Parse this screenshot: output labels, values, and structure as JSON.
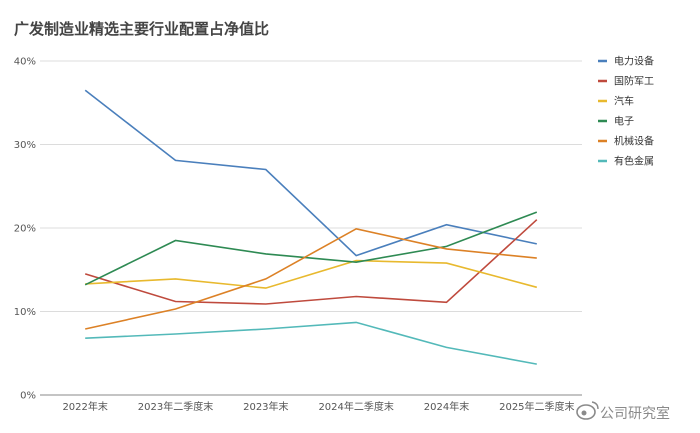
{
  "chart_data": {
    "type": "line",
    "title": "广发制造业精选主要行业配置占净值比",
    "categories": [
      "2022年末",
      "2023年二季度末",
      "2023年末",
      "2024年二季度末",
      "2024年末",
      "2025年二季度末"
    ],
    "y_ticks": [
      "0%",
      "10%",
      "20%",
      "30%",
      "40%"
    ],
    "ylim": [
      0,
      40
    ],
    "grid": true,
    "legend_position": "right",
    "series": [
      {
        "name": "电力设备",
        "color": "#4a7fbc",
        "values": [
          36.5,
          28.1,
          27.0,
          16.7,
          20.4,
          18.1
        ]
      },
      {
        "name": "国防军工",
        "color": "#bf4a3d",
        "values": [
          14.5,
          11.2,
          10.9,
          11.8,
          11.1,
          21.0
        ]
      },
      {
        "name": "汽车",
        "color": "#e8b92e",
        "values": [
          13.3,
          13.9,
          12.8,
          16.1,
          15.8,
          12.9
        ]
      },
      {
        "name": "电子",
        "color": "#2e8a53",
        "values": [
          13.2,
          18.5,
          16.9,
          15.9,
          17.8,
          21.9
        ]
      },
      {
        "name": "机械设备",
        "color": "#dc8126",
        "values": [
          7.9,
          10.3,
          13.9,
          19.9,
          17.5,
          16.4
        ]
      },
      {
        "name": "有色金属",
        "color": "#53b9b9",
        "values": [
          6.8,
          7.3,
          7.9,
          8.7,
          5.7,
          3.7
        ]
      }
    ]
  },
  "watermark": {
    "text": "公司研究室"
  }
}
